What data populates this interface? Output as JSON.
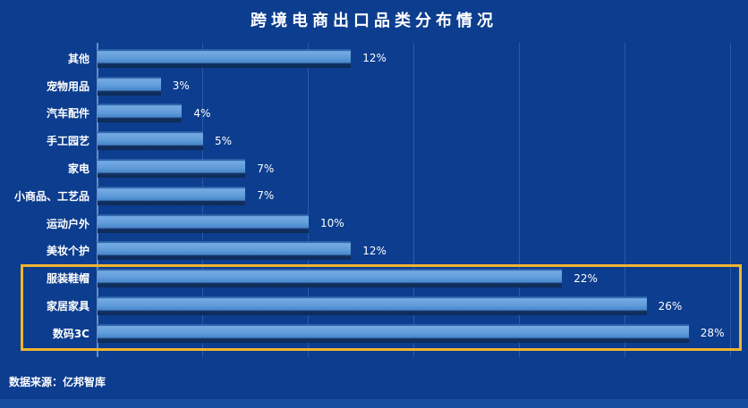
{
  "title": "跨境电商出口品类分布情况",
  "source": "数据来源：亿邦智库",
  "colors": {
    "background": "#0c3d8e",
    "bar_fill_light": "#609cd9",
    "bar_fill_dark": "#0e2b58",
    "highlight_box": "#f0b42f",
    "axis_line": "#6a8cc0",
    "gridline": "#2f5ca6",
    "footer_strip": "#174da0",
    "text": "#ffffff"
  },
  "chart_data": {
    "type": "bar",
    "orientation": "horizontal",
    "title": "跨境电商出口品类分布情况",
    "categories": [
      "其他",
      "宠物用品",
      "汽车配件",
      "手工园艺",
      "家电",
      "小商品、工艺品",
      "运动户外",
      "美妆个护",
      "服装鞋帽",
      "家居家具",
      "数码3C"
    ],
    "values": [
      12,
      3,
      4,
      5,
      7,
      7,
      10,
      12,
      22,
      26,
      28
    ],
    "value_labels": [
      "12%",
      "3%",
      "4%",
      "5%",
      "7%",
      "7%",
      "10%",
      "12%",
      "22%",
      "26%",
      "28%"
    ],
    "xlabel": "",
    "ylabel": "",
    "xlim": [
      0,
      30
    ],
    "gridline_interval": 5,
    "grid": true,
    "legend": false,
    "highlighted_categories": [
      "服装鞋帽",
      "家居家具",
      "数码3C"
    ],
    "annotation": "yellow box around top three categories: 服装鞋帽, 家居家具, 数码3C"
  }
}
